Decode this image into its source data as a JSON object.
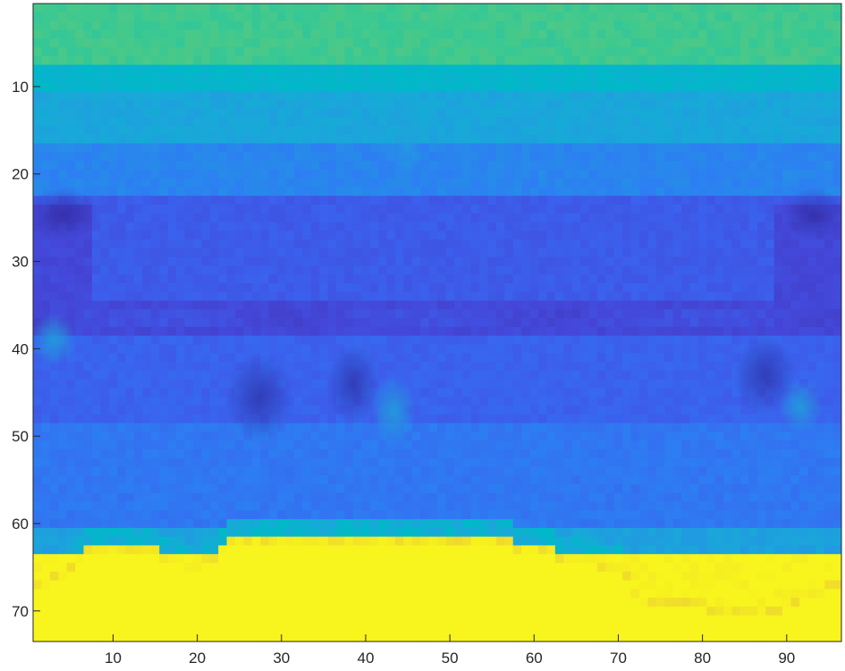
{
  "chart_data": {
    "type": "heatmap",
    "title": "",
    "xlabel": "",
    "ylabel": "",
    "cols": 96,
    "rows": 73,
    "xlim": [
      0.5,
      96.5
    ],
    "ylim": [
      0.5,
      73.5
    ],
    "y_direction": "reversed",
    "grid": false,
    "colormap": "parula",
    "colorbar": false,
    "xticks": [
      10,
      20,
      30,
      40,
      50,
      60,
      70,
      80,
      90
    ],
    "yticks": [
      10,
      20,
      30,
      40,
      50,
      60,
      70
    ],
    "palette": {
      "green": "#3ec98f",
      "teal": "#00b9c7",
      "cyan": "#1aa7d9",
      "blue": "#2d7ef2",
      "mid_blue": "#3a62ee",
      "indigo": "#4447d8",
      "deep": "#3a2fa6",
      "ice": "#21a0da",
      "ochre": "#e6c23a",
      "yellow": "#f8f41d"
    },
    "band_values": [
      {
        "row_from": 1,
        "row_to": 7,
        "level": 0.62
      },
      {
        "row_from": 8,
        "row_to": 10,
        "level": 0.48
      },
      {
        "row_from": 11,
        "row_to": 16,
        "level": 0.4
      },
      {
        "row_from": 17,
        "row_to": 22,
        "level": 0.3
      },
      {
        "row_from": 23,
        "row_to": 34,
        "level": 0.18
      },
      {
        "row_from": 35,
        "row_to": 38,
        "level": 0.12
      },
      {
        "row_from": 39,
        "row_to": 48,
        "level": 0.2
      },
      {
        "row_from": 49,
        "row_to": 60,
        "level": 0.26
      },
      {
        "row_from": 61,
        "row_to": 63,
        "level": 0.38
      },
      {
        "row_from": 64,
        "row_to": 73,
        "level": 1.0
      }
    ],
    "ice_boundary": [
      {
        "col": 1,
        "row": 67
      },
      {
        "col": 4,
        "row": 66
      },
      {
        "col": 7,
        "row": 63
      },
      {
        "col": 15,
        "row": 63
      },
      {
        "col": 17,
        "row": 64
      },
      {
        "col": 20,
        "row": 65
      },
      {
        "col": 24,
        "row": 62
      },
      {
        "col": 55,
        "row": 62
      },
      {
        "col": 70,
        "row": 65
      },
      {
        "col": 73,
        "row": 69
      },
      {
        "col": 88,
        "row": 70
      },
      {
        "col": 93,
        "row": 68
      },
      {
        "col": 96,
        "row": 67
      }
    ]
  }
}
